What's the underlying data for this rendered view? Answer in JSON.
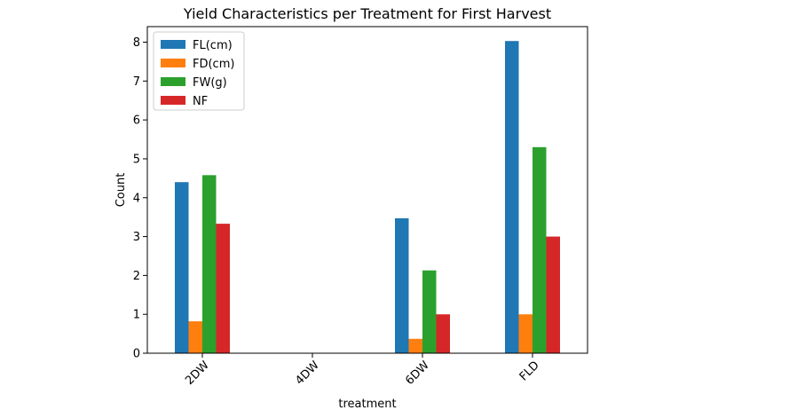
{
  "chart_data": {
    "type": "bar",
    "title": "Yield Characteristics per Treatment for First Harvest",
    "xlabel": "treatment",
    "ylabel": "Count",
    "categories": [
      "2DW",
      "4DW",
      "6DW",
      "FLD"
    ],
    "ylim": [
      0,
      8.4
    ],
    "yticks": [
      0,
      1,
      2,
      3,
      4,
      5,
      6,
      7,
      8
    ],
    "grid": false,
    "legend_position": "top-left",
    "series": [
      {
        "name": "FL(cm)",
        "color": "#1f77b4",
        "values": [
          4.4,
          0,
          3.47,
          8.03
        ]
      },
      {
        "name": "FD(cm)",
        "color": "#ff7f0e",
        "values": [
          0.82,
          0,
          0.37,
          1.0
        ]
      },
      {
        "name": "FW(g)",
        "color": "#2ca02c",
        "values": [
          4.58,
          0,
          2.13,
          5.3
        ]
      },
      {
        "name": "NF",
        "color": "#d62728",
        "values": [
          3.33,
          0,
          1.0,
          3.0
        ]
      }
    ]
  }
}
